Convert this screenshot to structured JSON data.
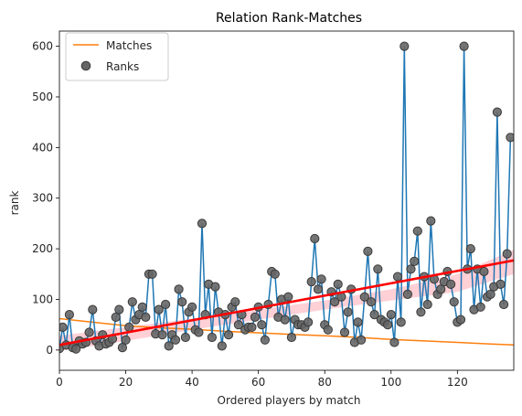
{
  "chart_data": {
    "type": "scatter",
    "title": "Relation Rank-Matches",
    "xlabel": "Ordered players by match",
    "ylabel": "rank",
    "xlim": [
      0,
      137
    ],
    "ylim": [
      -40,
      630
    ],
    "x_ticks": [
      0,
      20,
      40,
      60,
      80,
      100,
      120
    ],
    "y_ticks": [
      0,
      100,
      200,
      300,
      400,
      500,
      600
    ],
    "grid": false,
    "legend_position": "top-left",
    "legend": [
      {
        "label": "Matches",
        "kind": "line",
        "color": "#ff7f0e"
      },
      {
        "label": "Ranks",
        "kind": "marker",
        "color": "#666666"
      }
    ],
    "colors": {
      "rank_line": "#1f77b4",
      "rank_marker": "#666666",
      "matches_line": "#ff7f0e",
      "regression_line": "#ff0000",
      "confidence_band": "#ffc0c8"
    },
    "series": [
      {
        "name": "Ranks",
        "x_start": 0,
        "values": [
          3,
          45,
          10,
          70,
          5,
          2,
          18,
          12,
          15,
          35,
          80,
          18,
          8,
          30,
          12,
          15,
          22,
          65,
          80,
          5,
          20,
          45,
          95,
          60,
          70,
          85,
          65,
          150,
          150,
          32,
          80,
          30,
          90,
          8,
          30,
          20,
          120,
          95,
          25,
          75,
          85,
          40,
          35,
          250,
          70,
          130,
          25,
          125,
          75,
          8,
          70,
          30,
          85,
          95,
          50,
          70,
          40,
          45,
          45,
          65,
          85,
          50,
          20,
          90,
          155,
          150,
          65,
          100,
          60,
          105,
          25,
          60,
          50,
          50,
          45,
          55,
          135,
          220,
          120,
          140,
          50,
          40,
          115,
          95,
          130,
          105,
          35,
          75,
          120,
          15,
          55,
          20,
          105,
          195,
          95,
          70,
          160,
          60,
          55,
          50,
          70,
          15,
          145,
          55,
          600,
          110,
          160,
          175,
          235,
          75,
          145,
          90,
          255,
          140,
          110,
          120,
          135,
          155,
          130,
          95,
          55,
          60,
          600,
          160,
          200,
          80,
          160,
          85,
          155,
          105,
          110,
          125,
          470,
          130,
          90,
          190,
          420
        ]
      },
      {
        "name": "Matches",
        "points": [
          [
            0,
            62
          ],
          [
            10,
            55
          ],
          [
            20,
            48
          ],
          [
            30,
            44
          ],
          [
            40,
            41
          ],
          [
            50,
            37
          ],
          [
            60,
            34
          ],
          [
            70,
            31
          ],
          [
            80,
            28
          ],
          [
            90,
            25
          ],
          [
            100,
            21
          ],
          [
            110,
            18
          ],
          [
            120,
            15
          ],
          [
            130,
            12
          ],
          [
            137,
            10
          ]
        ]
      }
    ],
    "regression": {
      "x": [
        0,
        137
      ],
      "y": [
        10,
        177
      ],
      "ci_upper": [
        [
          0,
          28
        ],
        [
          20,
          45
        ],
        [
          40,
          62
        ],
        [
          60,
          80
        ],
        [
          80,
          98
        ],
        [
          100,
          120
        ],
        [
          120,
          150
        ],
        [
          137,
          198
        ]
      ],
      "ci_lower": [
        [
          0,
          -2
        ],
        [
          20,
          18
        ],
        [
          40,
          40
        ],
        [
          60,
          60
        ],
        [
          80,
          80
        ],
        [
          100,
          98
        ],
        [
          120,
          115
        ],
        [
          137,
          150
        ]
      ]
    }
  }
}
